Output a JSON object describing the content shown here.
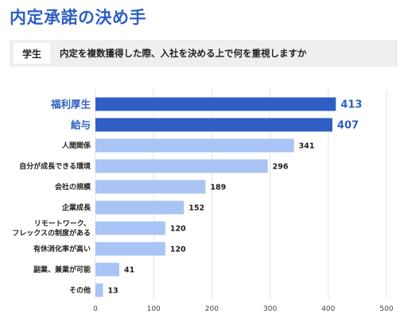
{
  "page": {
    "title": "内定承諾の決め手",
    "question_tag": "学生",
    "question_text": "内定を複数獲得した際、入社を決める上で何を重視しますか"
  },
  "chart_data": {
    "type": "bar",
    "orientation": "horizontal",
    "categories": [
      "福利厚生",
      "給与",
      "人間関係",
      "自分が成長できる環境",
      "会社の規模",
      "企業成長",
      "リモートワーク、\nフレックスの制度がある",
      "有休消化率が高い",
      "副業、兼業が可能",
      "その他"
    ],
    "values": [
      413,
      407,
      341,
      296,
      189,
      152,
      120,
      120,
      41,
      13
    ],
    "highlighted": [
      true,
      true,
      false,
      false,
      false,
      false,
      false,
      false,
      false,
      false
    ],
    "xlim": [
      0,
      500
    ],
    "xticks": [
      0,
      100,
      200,
      300,
      400,
      500
    ],
    "grid": true,
    "colors": {
      "highlight": "#2f5fc4",
      "normal": "#a9c4f5",
      "grid": "#e3e3e3"
    }
  }
}
